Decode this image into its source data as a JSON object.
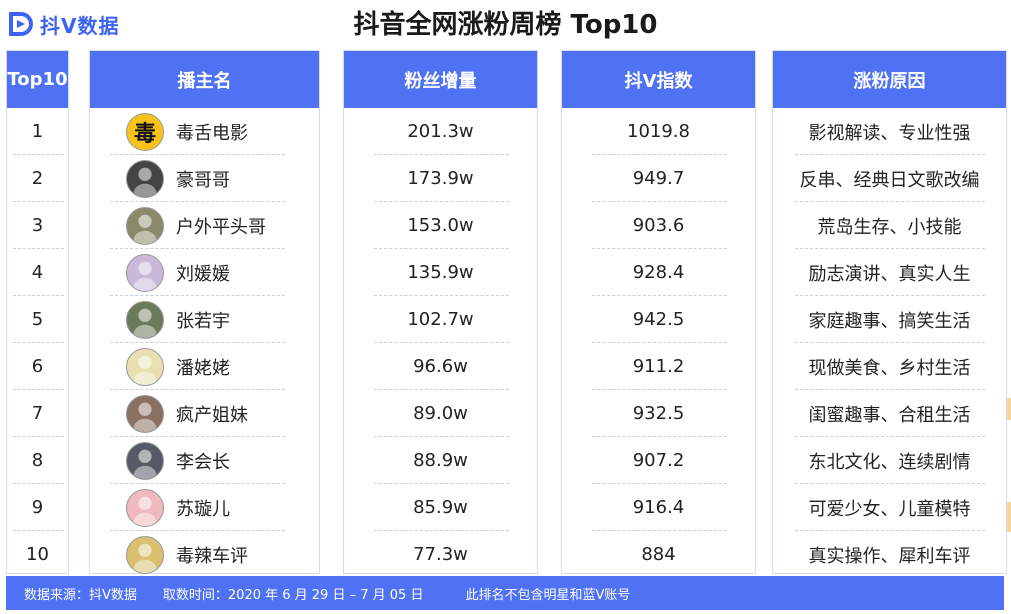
{
  "brand": {
    "logo_letter": "D",
    "name": "抖V数据"
  },
  "title": "抖音全网涨粉周榜 Top10",
  "columns": {
    "rank": "Top10",
    "streamer": "播主名",
    "fans_growth": "粉丝增量",
    "v_index": "抖V指数",
    "reason": "涨粉原因"
  },
  "rows": [
    {
      "rank": "1",
      "name": "毒舌电影",
      "avatar_glyph": "毒",
      "growth": "201.3w",
      "index": "1019.8",
      "reason": "影视解读、专业性强"
    },
    {
      "rank": "2",
      "name": "豪哥哥",
      "avatar_glyph": "",
      "growth": "173.9w",
      "index": "949.7",
      "reason": "反串、经典日文歌改编"
    },
    {
      "rank": "3",
      "name": "户外平头哥",
      "avatar_glyph": "",
      "growth": "153.0w",
      "index": "903.6",
      "reason": "荒岛生存、小技能"
    },
    {
      "rank": "4",
      "name": "刘媛媛",
      "avatar_glyph": "",
      "growth": "135.9w",
      "index": "928.4",
      "reason": "励志演讲、真实人生"
    },
    {
      "rank": "5",
      "name": "张若宇",
      "avatar_glyph": "",
      "growth": "102.7w",
      "index": "942.5",
      "reason": "家庭趣事、搞笑生活"
    },
    {
      "rank": "6",
      "name": "潘姥姥",
      "avatar_glyph": "",
      "growth": "96.6w",
      "index": "911.2",
      "reason": "现做美食、乡村生活"
    },
    {
      "rank": "7",
      "name": "疯产姐妹",
      "avatar_glyph": "",
      "growth": "89.0w",
      "index": "932.5",
      "reason": "闺蜜趣事、合租生活"
    },
    {
      "rank": "8",
      "name": "李会长",
      "avatar_glyph": "",
      "growth": "88.9w",
      "index": "907.2",
      "reason": "东北文化、连续剧情"
    },
    {
      "rank": "9",
      "name": "苏璇儿",
      "avatar_glyph": "",
      "growth": "85.9w",
      "index": "916.4",
      "reason": "可爱少女、儿童模特"
    },
    {
      "rank": "10",
      "name": "毒辣车评",
      "avatar_glyph": "",
      "growth": "77.3w",
      "index": "884",
      "reason": "真实操作、犀利车评"
    }
  ],
  "footer": {
    "source": "数据来源：抖V数据",
    "period": "取数时间：2020 年 6 月 29 日 – 7 月 05 日",
    "note": "此排名不包含明星和蓝V账号"
  },
  "colors": {
    "header_bg": "#4f72f5",
    "brand_blue": "#3d63f5",
    "border": "#d5dbf0",
    "accent_strip": "#f3d49a"
  }
}
